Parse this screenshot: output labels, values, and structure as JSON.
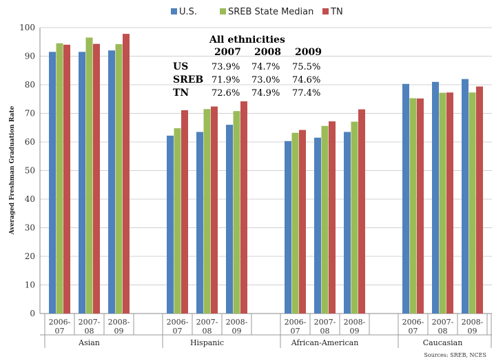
{
  "chart_data": {
    "type": "bar",
    "ylabel": "Averaged Freshman Graduation Rate",
    "ylim": [
      0,
      100
    ],
    "yticks": [
      0,
      10,
      20,
      30,
      40,
      50,
      60,
      70,
      80,
      90,
      100
    ],
    "legend_position": "top-center",
    "groups": [
      {
        "name": "Asian",
        "years": [
          "2006-07",
          "2007-08",
          "2008-09"
        ]
      },
      {
        "name": "Hispanic",
        "years": [
          "2006-07",
          "2007-08",
          "2008-09"
        ]
      },
      {
        "name": "African-American",
        "years": [
          "2006-07",
          "2007-08",
          "2008-09"
        ]
      },
      {
        "name": "Caucasian",
        "years": [
          "2006-07",
          "2007-08",
          "2008-09"
        ]
      }
    ],
    "series": [
      {
        "name": "U.S.",
        "color": "#4f81bd",
        "values": [
          91.5,
          91.5,
          92,
          62.2,
          63.5,
          66,
          60.3,
          61.5,
          63.5,
          80.3,
          81,
          82
        ]
      },
      {
        "name": "SREB State Median",
        "color": "#9bbb59",
        "values": [
          94.5,
          96.5,
          94.2,
          64.8,
          71.5,
          70.8,
          63.2,
          65.6,
          67.1,
          75.3,
          77.2,
          77.3
        ]
      },
      {
        "name": "TN",
        "color": "#c0504d",
        "values": [
          94,
          94.3,
          97.8,
          71.1,
          72.4,
          74.2,
          64.2,
          67.2,
          71.4,
          75.2,
          77.3,
          79.4
        ]
      }
    ],
    "inset_table": {
      "title": "All ethnicities",
      "years": [
        "2007",
        "2008",
        "2009"
      ],
      "rows": [
        {
          "label": "US",
          "values": [
            "73.9%",
            "74.7%",
            "75.5%"
          ]
        },
        {
          "label": "SREB",
          "values": [
            "71.9%",
            "73.0%",
            "74.6%"
          ]
        },
        {
          "label": "TN",
          "values": [
            "72.6%",
            "74.9%",
            "77.4%"
          ]
        }
      ]
    },
    "source": "Sources: SREB, NCES"
  }
}
